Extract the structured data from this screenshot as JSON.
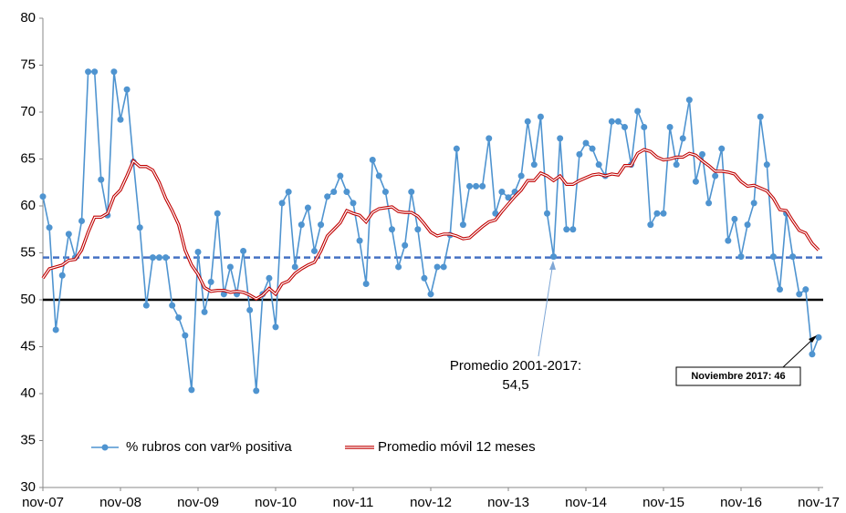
{
  "chart_data": {
    "type": "line",
    "categories": [
      "nov-07",
      null,
      null,
      null,
      null,
      null,
      null,
      null,
      null,
      null,
      null,
      null,
      "nov-08",
      null,
      null,
      null,
      null,
      null,
      null,
      null,
      null,
      null,
      null,
      null,
      "nov-09",
      null,
      null,
      null,
      null,
      null,
      null,
      null,
      null,
      null,
      null,
      null,
      "nov-10",
      null,
      null,
      null,
      null,
      null,
      null,
      null,
      null,
      null,
      null,
      null,
      "nov-11",
      null,
      null,
      null,
      null,
      null,
      null,
      null,
      null,
      null,
      null,
      null,
      "nov-12",
      null,
      null,
      null,
      null,
      null,
      null,
      null,
      null,
      null,
      null,
      null,
      "nov-13",
      null,
      null,
      null,
      null,
      null,
      null,
      null,
      null,
      null,
      null,
      null,
      "nov-14",
      null,
      null,
      null,
      null,
      null,
      null,
      null,
      null,
      null,
      null,
      null,
      "nov-15",
      null,
      null,
      null,
      null,
      null,
      null,
      null,
      null,
      null,
      null,
      null,
      "nov-16",
      null,
      null,
      null,
      null,
      null,
      null,
      null,
      null,
      null,
      null,
      null,
      "nov-17"
    ],
    "series": [
      {
        "name": "% rubros con var% positiva",
        "color": "#4f94d0",
        "marker": true,
        "values": [
          61,
          57.7,
          46.8,
          52.6,
          57,
          54.5,
          58.4,
          74.3,
          74.3,
          62.8,
          59,
          74.3,
          69.2,
          72.4,
          64.7,
          57.7,
          49.4,
          54.5,
          54.5,
          54.5,
          49.4,
          48.1,
          46.2,
          40.4,
          55.1,
          48.7,
          51.9,
          59.2,
          50.6,
          53.5,
          50.6,
          55.2,
          48.9,
          40.3,
          50.6,
          52.3,
          47.1,
          60.3,
          61.5,
          53.5,
          58,
          59.8,
          55.2,
          58,
          61,
          61.5,
          63.2,
          61.5,
          60.3,
          56.3,
          51.7,
          64.9,
          63.2,
          61.5,
          57.5,
          53.5,
          55.8,
          61.5,
          57.5,
          52.3,
          50.6,
          53.5,
          53.5,
          56.9,
          66.1,
          58,
          62.1,
          62.1,
          62.1,
          67.2,
          59.2,
          61.5,
          60.9,
          61.5,
          63.2,
          69,
          64.4,
          69.5,
          59.2,
          54.6,
          67.2,
          57.5,
          57.5,
          65.5,
          66.7,
          66.1,
          64.4,
          63.2,
          69,
          69,
          68.4,
          64.4,
          70.1,
          68.4,
          58,
          59.2,
          59.2,
          68.4,
          64.4,
          67.2,
          71.3,
          62.6,
          65.5,
          60.3,
          63.2,
          66.1,
          56.3,
          58.6,
          54.6,
          58,
          60.3,
          69.5,
          64.4,
          54.6,
          51.1,
          59.2,
          54.6,
          50.6,
          51.1,
          44.2,
          46
        ]
      },
      {
        "name": "Promedio móvil 12 meses",
        "color": "#c00000",
        "marker": false,
        "values": [
          52.3,
          53.3,
          53.5,
          53.7,
          54.2,
          54.3,
          55.3,
          57.2,
          58.8,
          58.8,
          59.2,
          61,
          61.7,
          63.2,
          64.8,
          64.2,
          64.2,
          63.8,
          62.5,
          60.8,
          59.5,
          58,
          55.3,
          53.7,
          52.7,
          51.3,
          50.9,
          51,
          51,
          50.8,
          50.9,
          50.8,
          50.5,
          50.1,
          50.5,
          51.2,
          50.6,
          51.7,
          52,
          52.8,
          53.3,
          53.7,
          54,
          55.2,
          56.8,
          57.5,
          58.2,
          59.5,
          59.2,
          59,
          58.3,
          59.3,
          59.7,
          59.8,
          59.9,
          59.4,
          59.3,
          59.3,
          58.9,
          58.1,
          57.2,
          56.8,
          57,
          57,
          56.8,
          56.5,
          56.6,
          57.2,
          57.8,
          58.3,
          58.5,
          59.4,
          60.2,
          61,
          61.7,
          62.7,
          62.7,
          63.5,
          63.2,
          62.7,
          63.2,
          62.3,
          62.3,
          62.7,
          63,
          63.3,
          63.4,
          63.2,
          63.4,
          63.3,
          64.3,
          64.3,
          65.6,
          66,
          65.8,
          65.2,
          64.9,
          65,
          65.2,
          65.2,
          65.6,
          65.4,
          64.8,
          64.3,
          63.7,
          63.7,
          63.6,
          63.4,
          62.6,
          62.1,
          62.2,
          61.9,
          61.6,
          60.8,
          59.6,
          59.5,
          58.4,
          57.4,
          57.1,
          56,
          55.3
        ]
      }
    ],
    "reference_lines": [
      {
        "value": 54.5,
        "color": "#4472c4",
        "dashed": true
      },
      {
        "value": 50,
        "color": "#000000",
        "dashed": false
      }
    ],
    "annotations": [
      {
        "lines": [
          "Promedio 2001-2017:",
          "54,5"
        ]
      },
      {
        "lines": [
          "Noviembre 2017: 46"
        ],
        "boxed": true
      }
    ],
    "ylim": [
      30,
      80
    ],
    "yticks": [
      30,
      35,
      40,
      45,
      50,
      55,
      60,
      65,
      70,
      75,
      80
    ],
    "grid": false
  }
}
